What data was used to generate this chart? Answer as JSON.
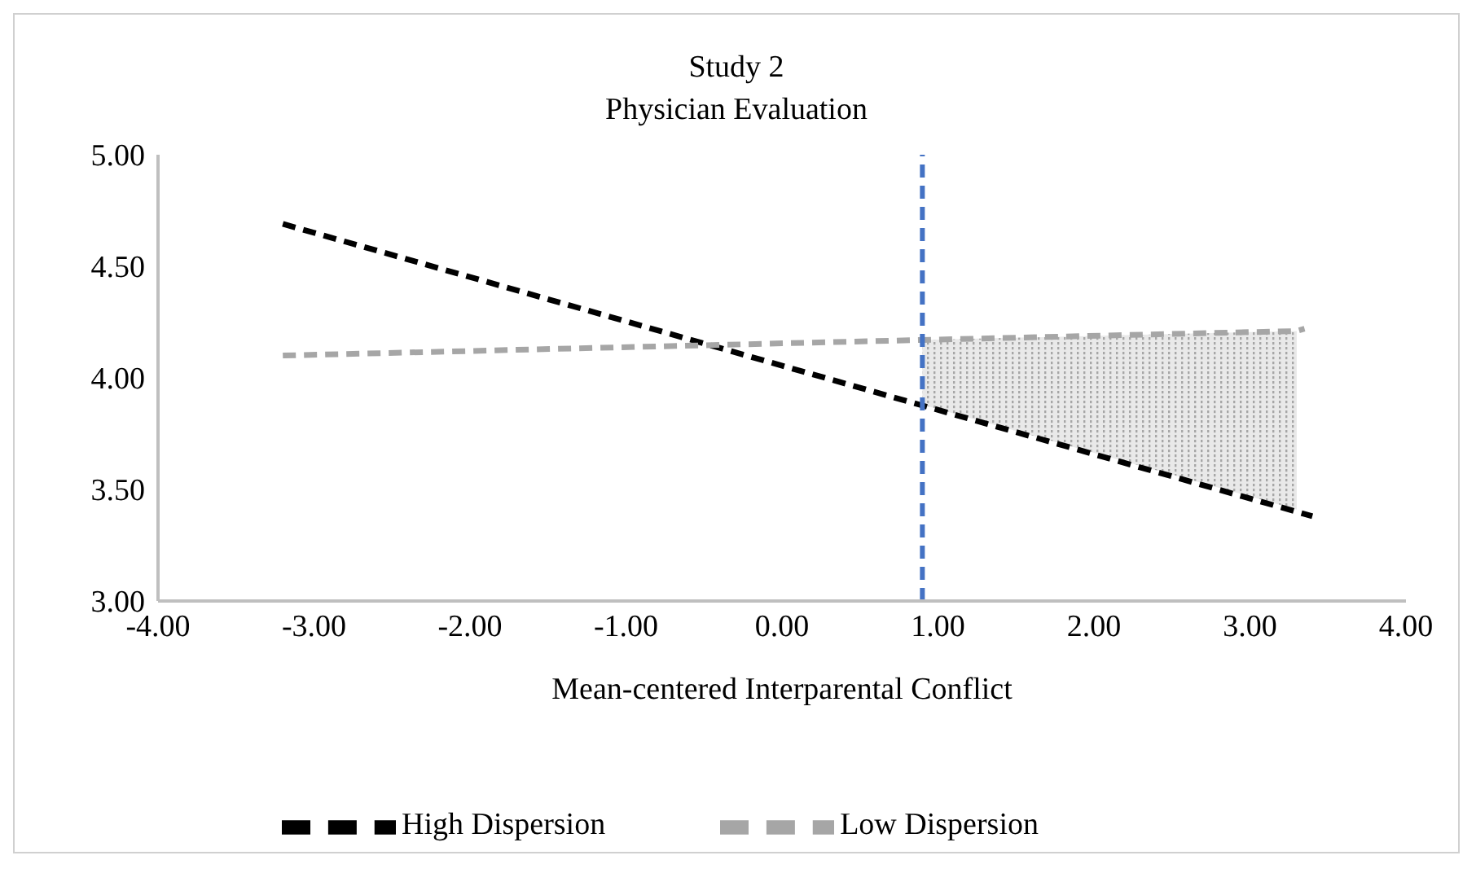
{
  "chart_data": {
    "type": "line",
    "title": "Study 2",
    "subtitle": "Physician Evaluation",
    "xlabel": "Mean-centered Interparental Conflict",
    "series": [
      {
        "name": "High Dispersion",
        "color": "#000000",
        "x": [
          -3.2,
          3.4
        ],
        "values": [
          4.69,
          3.38
        ]
      },
      {
        "name": "Low Dispersion",
        "color": "#a6a6a6",
        "x": [
          -3.2,
          0.9,
          3.3,
          3.35
        ],
        "values": [
          4.1,
          4.17,
          4.21,
          4.22
        ],
        "lower": [
          null,
          3.88,
          3.41,
          null
        ],
        "upper": [
          null,
          4.17,
          4.21,
          null
        ]
      }
    ],
    "xlim": [
      -4,
      4
    ],
    "xticks": [
      {
        "value": -4,
        "label": "-4.00"
      },
      {
        "value": -3,
        "label": "-3.00"
      },
      {
        "value": -2,
        "label": "-2.00"
      },
      {
        "value": -1,
        "label": "-1.00"
      },
      {
        "value": 0,
        "label": "0.00"
      },
      {
        "value": 1,
        "label": "1.00"
      },
      {
        "value": 2,
        "label": "2.00"
      },
      {
        "value": 3,
        "label": "3.00"
      },
      {
        "value": 4,
        "label": "4.00"
      }
    ],
    "ylim": [
      3,
      5
    ],
    "yticks": [
      {
        "value": 3,
        "label": "3.00"
      },
      {
        "value": 3.5,
        "label": "3.50"
      },
      {
        "value": 4,
        "label": "4.00"
      },
      {
        "value": 4.5,
        "label": "4.50"
      },
      {
        "value": 5,
        "label": "5.00"
      }
    ],
    "ref_lines": [
      {
        "axis": "x",
        "value": 0.9,
        "color": "#4472c4",
        "line_style": "dashed"
      }
    ],
    "grid": false,
    "legend": "bottom",
    "marker": "none",
    "line_style": "dashed"
  }
}
